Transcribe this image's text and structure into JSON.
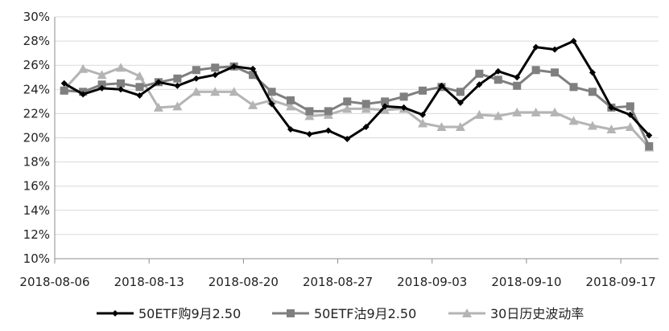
{
  "chart_data": {
    "type": "line",
    "title": "",
    "xlabel": "",
    "ylabel": "",
    "ylim": [
      10,
      30
    ],
    "y_unit": "%",
    "grid": "horizontal",
    "legend_position": "bottom",
    "x_tick_labels": [
      "2018-08-06",
      "2018-08-13",
      "2018-08-20",
      "2018-08-27",
      "2018-09-03",
      "2018-09-10",
      "2018-09-17"
    ],
    "y_tick_labels": [
      "10%",
      "12%",
      "14%",
      "16%",
      "18%",
      "20%",
      "22%",
      "24%",
      "26%",
      "28%",
      "30%"
    ],
    "x": [
      "2018-08-06",
      "2018-08-07",
      "2018-08-08",
      "2018-08-09",
      "2018-08-10",
      "2018-08-13",
      "2018-08-14",
      "2018-08-15",
      "2018-08-16",
      "2018-08-17",
      "2018-08-20",
      "2018-08-21",
      "2018-08-22",
      "2018-08-23",
      "2018-08-24",
      "2018-08-27",
      "2018-08-28",
      "2018-08-29",
      "2018-08-30",
      "2018-08-31",
      "2018-09-03",
      "2018-09-04",
      "2018-09-05",
      "2018-09-06",
      "2018-09-07",
      "2018-09-10",
      "2018-09-11",
      "2018-09-12",
      "2018-09-13",
      "2018-09-14",
      "2018-09-17",
      "2018-09-18"
    ],
    "series": [
      {
        "name": "50ETF购9月2.50",
        "color": "#000000",
        "marker": "diamond",
        "values": [
          24.5,
          23.6,
          24.1,
          24.0,
          23.5,
          24.6,
          24.3,
          24.9,
          25.2,
          25.9,
          25.7,
          22.8,
          20.7,
          20.3,
          20.6,
          19.9,
          20.9,
          22.6,
          22.5,
          21.9,
          24.3,
          22.9,
          24.4,
          25.5,
          25.0,
          27.5,
          27.3,
          28.0,
          25.4,
          22.5,
          21.9,
          20.2
        ]
      },
      {
        "name": "50ETF沽9月2.50",
        "color": "#7f7f7f",
        "marker": "square",
        "values": [
          23.9,
          23.8,
          24.4,
          24.5,
          24.2,
          24.6,
          24.9,
          25.6,
          25.8,
          25.9,
          25.2,
          23.8,
          23.1,
          22.2,
          22.2,
          23.0,
          22.8,
          23.0,
          23.4,
          23.9,
          24.2,
          23.8,
          25.3,
          24.8,
          24.3,
          25.6,
          25.4,
          24.2,
          23.8,
          22.5,
          22.6,
          19.3
        ]
      },
      {
        "name": "30日历史波动率",
        "color": "#b4b4b4",
        "marker": "triangle",
        "values": [
          24.0,
          25.7,
          25.2,
          25.8,
          25.1,
          22.5,
          22.6,
          23.8,
          23.8,
          23.8,
          22.7,
          23.1,
          22.6,
          21.8,
          21.9,
          22.4,
          22.4,
          22.3,
          22.4,
          21.2,
          20.9,
          20.9,
          21.9,
          21.8,
          22.1,
          22.1,
          22.1,
          21.4,
          21.0,
          20.7,
          20.9,
          19.2
        ]
      }
    ]
  }
}
